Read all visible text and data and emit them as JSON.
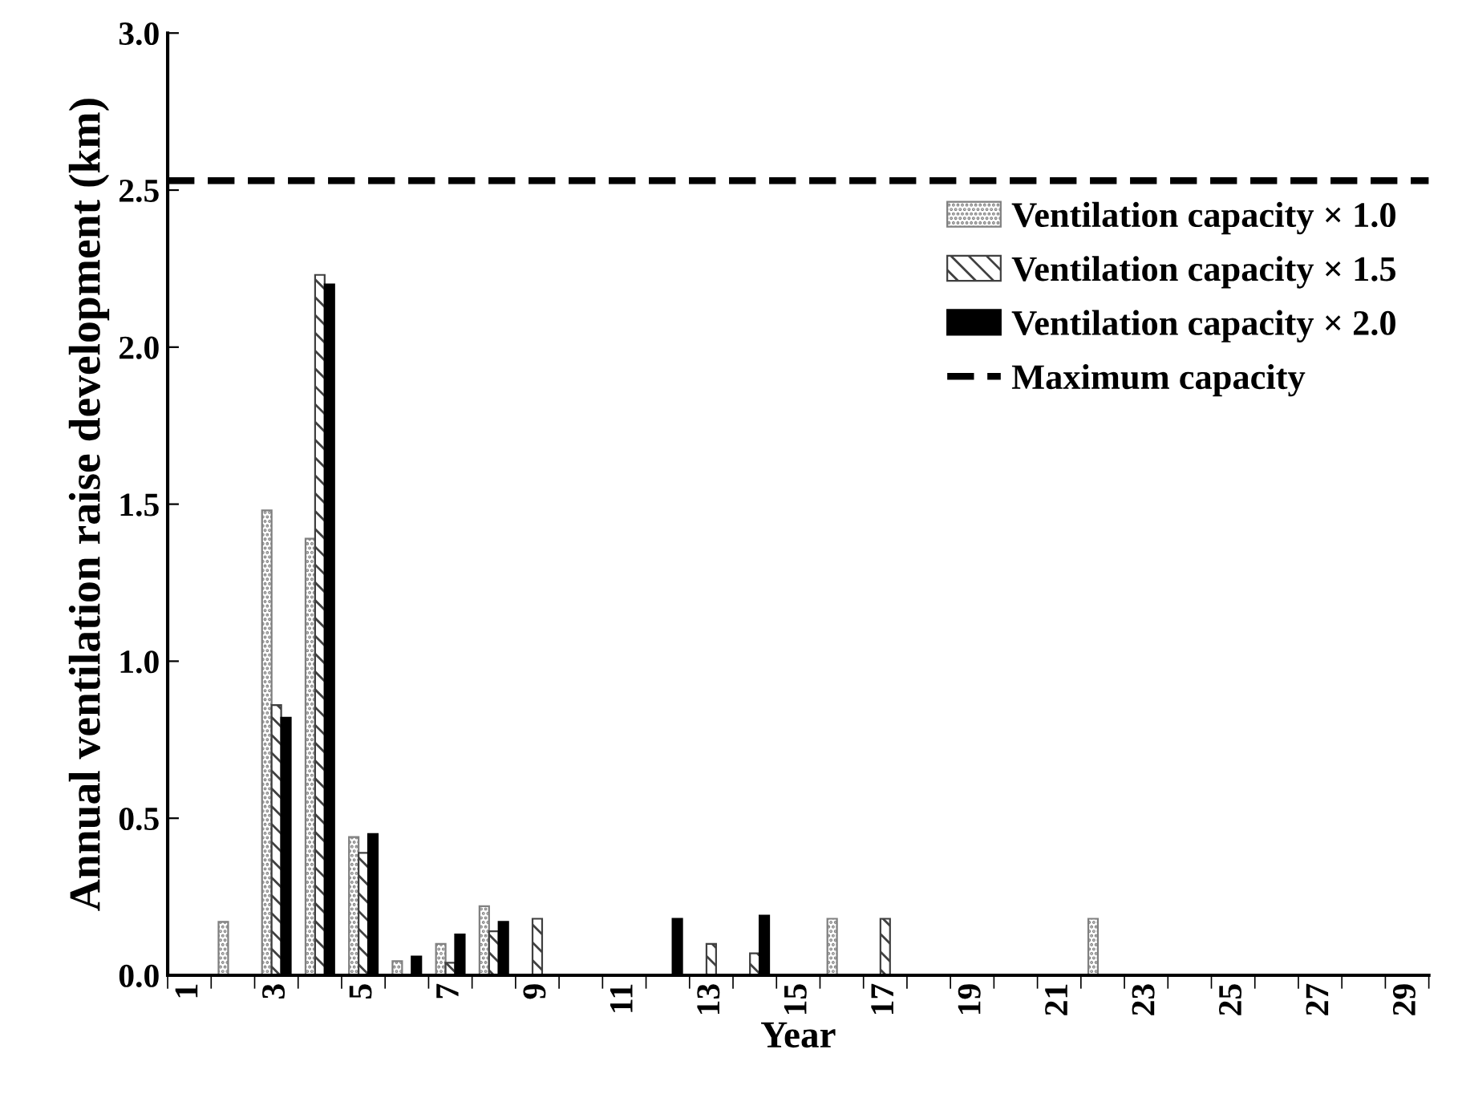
{
  "chart_data": {
    "type": "bar",
    "xlabel": "Year",
    "ylabel": "Annual ventilation raise development (km)",
    "categories": [
      "1",
      null,
      "3",
      null,
      "5",
      null,
      "7",
      null,
      "9",
      null,
      "11",
      null,
      "13",
      null,
      "15",
      null,
      "17",
      null,
      "19",
      null,
      "21",
      null,
      "23",
      null,
      "25",
      null,
      "27",
      null,
      "29"
    ],
    "series": [
      {
        "name": "Ventilation capacity × 1.0",
        "color": "#808080",
        "values": [
          null,
          0.17,
          1.48,
          1.39,
          0.44,
          0.045,
          0.1,
          0.22,
          null,
          null,
          null,
          null,
          null,
          null,
          null,
          0.18,
          null,
          null,
          null,
          null,
          null,
          0.18,
          null,
          null,
          null,
          null,
          null,
          null,
          null
        ]
      },
      {
        "name": "Ventilation capacity × 1.5",
        "color": "#404040",
        "values": [
          null,
          null,
          0.86,
          2.23,
          0.39,
          null,
          0.04,
          0.14,
          0.18,
          null,
          null,
          null,
          0.1,
          0.07,
          null,
          null,
          0.18,
          null,
          null,
          null,
          null,
          null,
          null,
          null,
          null,
          null,
          null,
          null,
          null
        ]
      },
      {
        "name": "Ventilation capacity × 2.0",
        "color": "#000000",
        "values": [
          null,
          null,
          0.82,
          2.2,
          0.45,
          0.06,
          0.13,
          0.17,
          null,
          null,
          null,
          0.18,
          null,
          0.19,
          null,
          null,
          null,
          null,
          null,
          null,
          null,
          null,
          null,
          null,
          null,
          null,
          null,
          null,
          null
        ]
      }
    ],
    "ref_lines": [
      {
        "axis": "y",
        "value": 2.53,
        "label": "Maximum capacity",
        "color": "#000000",
        "line_style": "dashed"
      }
    ],
    "ylim": [
      0,
      3.0
    ],
    "yticks": [
      {
        "value": 0,
        "label": "0.0"
      },
      0.5,
      {
        "value": 1,
        "label": "1.0"
      },
      1.5,
      {
        "value": 2,
        "label": "2.0"
      },
      2.5,
      {
        "value": 3,
        "label": "3.0"
      }
    ],
    "legend": "top right",
    "grid": false
  }
}
